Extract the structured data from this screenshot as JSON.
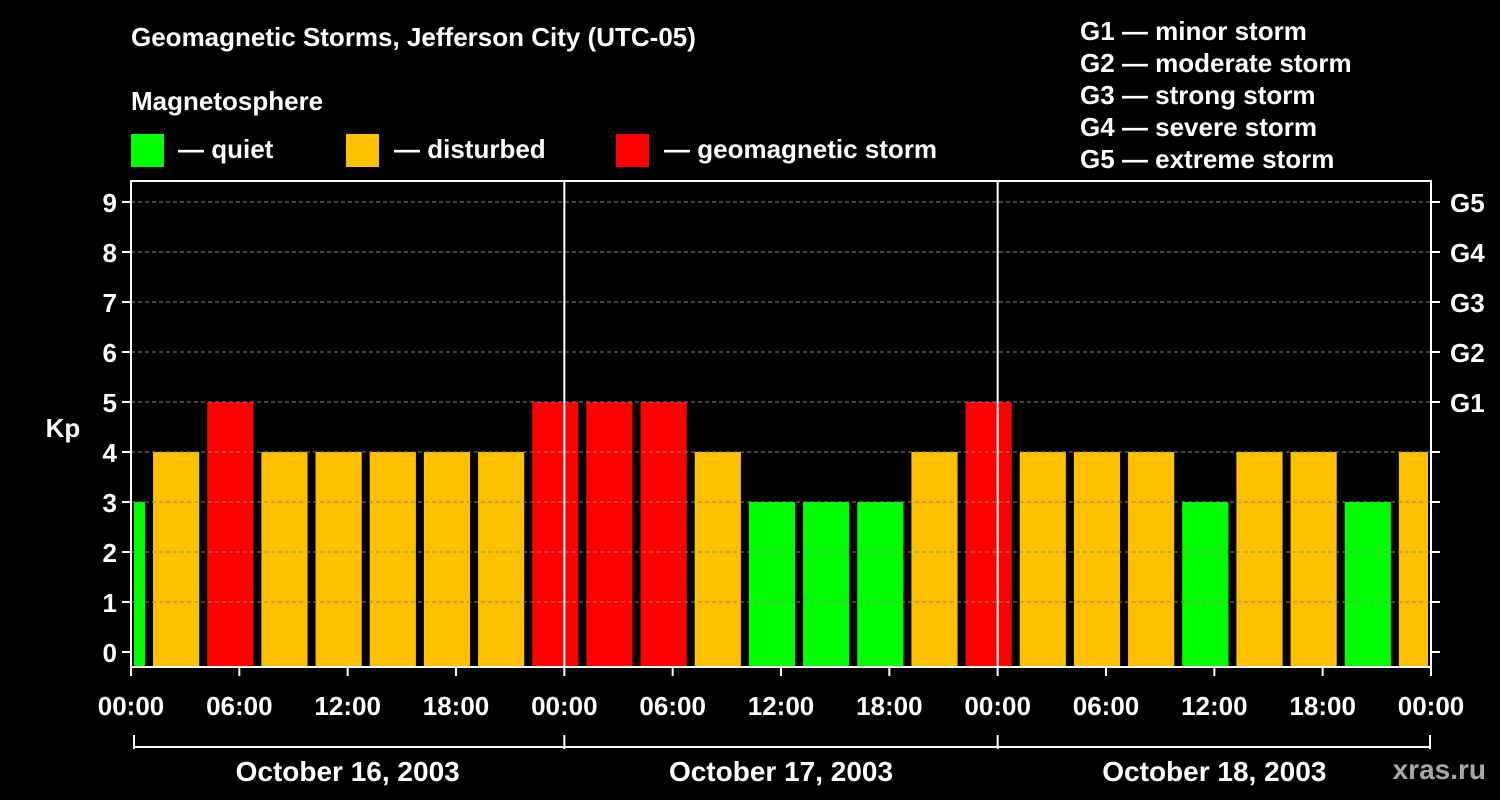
{
  "header": {
    "title": "Geomagnetic Storms, Jefferson City (UTC-05)",
    "subtitle": "Magnetosphere"
  },
  "legend": [
    {
      "label": "— quiet",
      "color": "#00ff00"
    },
    {
      "label": "— disturbed",
      "color": "#ffc000"
    },
    {
      "label": "— geomagnetic storm",
      "color": "#ff0000"
    }
  ],
  "storm_scale": [
    "G1 — minor storm",
    "G2 — moderate storm",
    "G3 — strong storm",
    "G4 — severe storm",
    "G5 — extreme storm"
  ],
  "watermark": "xras.ru",
  "chart_data": {
    "type": "bar",
    "title": "Geomagnetic Storms, Jefferson City (UTC-05)",
    "ylabel": "Kp",
    "ylim": [
      0,
      9
    ],
    "yticks": [
      "0",
      "1",
      "2",
      "3",
      "4",
      "5",
      "6",
      "7",
      "8",
      "9"
    ],
    "right_axis": [
      {
        "label": "G1",
        "kp": 5
      },
      {
        "label": "G2",
        "kp": 6
      },
      {
        "label": "G3",
        "kp": 7
      },
      {
        "label": "G4",
        "kp": 8
      },
      {
        "label": "G5",
        "kp": 9
      }
    ],
    "x_range_hours": [
      0,
      72
    ],
    "x_tick_labels": [
      "00:00",
      "06:00",
      "12:00",
      "18:00",
      "00:00",
      "06:00",
      "12:00",
      "18:00",
      "00:00",
      "06:00",
      "12:00",
      "18:00",
      "00:00"
    ],
    "days": [
      "October 16, 2003",
      "October 17, 2003",
      "October 18, 2003"
    ],
    "bars": [
      {
        "start": 0,
        "end": 1,
        "kp": 3,
        "level": "quiet"
      },
      {
        "start": 1,
        "end": 4,
        "kp": 4,
        "level": "disturbed"
      },
      {
        "start": 4,
        "end": 7,
        "kp": 5,
        "level": "storm"
      },
      {
        "start": 7,
        "end": 10,
        "kp": 4,
        "level": "disturbed"
      },
      {
        "start": 10,
        "end": 13,
        "kp": 4,
        "level": "disturbed"
      },
      {
        "start": 13,
        "end": 16,
        "kp": 4,
        "level": "disturbed"
      },
      {
        "start": 16,
        "end": 19,
        "kp": 4,
        "level": "disturbed"
      },
      {
        "start": 19,
        "end": 22,
        "kp": 4,
        "level": "disturbed"
      },
      {
        "start": 22,
        "end": 25,
        "kp": 5,
        "level": "storm"
      },
      {
        "start": 25,
        "end": 28,
        "kp": 5,
        "level": "storm"
      },
      {
        "start": 28,
        "end": 31,
        "kp": 5,
        "level": "storm"
      },
      {
        "start": 31,
        "end": 34,
        "kp": 4,
        "level": "disturbed"
      },
      {
        "start": 34,
        "end": 37,
        "kp": 3,
        "level": "quiet"
      },
      {
        "start": 37,
        "end": 40,
        "kp": 3,
        "level": "quiet"
      },
      {
        "start": 40,
        "end": 43,
        "kp": 3,
        "level": "quiet"
      },
      {
        "start": 43,
        "end": 46,
        "kp": 4,
        "level": "disturbed"
      },
      {
        "start": 46,
        "end": 49,
        "kp": 5,
        "level": "storm"
      },
      {
        "start": 49,
        "end": 52,
        "kp": 4,
        "level": "disturbed"
      },
      {
        "start": 52,
        "end": 55,
        "kp": 4,
        "level": "disturbed"
      },
      {
        "start": 55,
        "end": 58,
        "kp": 4,
        "level": "disturbed"
      },
      {
        "start": 58,
        "end": 61,
        "kp": 3,
        "level": "quiet"
      },
      {
        "start": 61,
        "end": 64,
        "kp": 4,
        "level": "disturbed"
      },
      {
        "start": 64,
        "end": 67,
        "kp": 4,
        "level": "disturbed"
      },
      {
        "start": 67,
        "end": 70,
        "kp": 3,
        "level": "quiet"
      },
      {
        "start": 70,
        "end": 72,
        "kp": 4,
        "level": "disturbed"
      }
    ],
    "colors": {
      "quiet": "#00ff00",
      "disturbed": "#ffc000",
      "storm": "#ff0000"
    },
    "grid": true
  }
}
